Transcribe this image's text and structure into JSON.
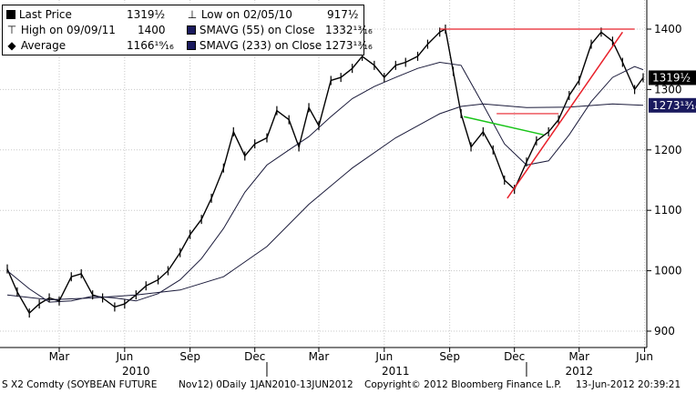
{
  "legend": {
    "rows": [
      {
        "symbol": "■",
        "label": "Last Price",
        "value": "1319½"
      },
      {
        "symbol": "⊤",
        "label": "High on 09/09/11",
        "value": "1400"
      },
      {
        "symbol": "--◆--",
        "label": "Average",
        "value": "1166¹⁹⁄₁₆"
      },
      {
        "symbol": "⊥",
        "label": "Low on 02/05/10",
        "value": "917½"
      },
      {
        "symbol": "■",
        "label": "SMAVG (55) on Close",
        "value": "1332¹³⁄₁₆"
      },
      {
        "symbol": "■",
        "label": "SMAVG (233) on Close",
        "value": "1273¹³⁄₁₆"
      }
    ]
  },
  "footer": {
    "ticker": "S X2 Comdty (SOYBEAN FUTURE",
    "contract": "Nov12) 0Daily 1JAN2010-13JUN2012",
    "copyright": "Copyright© 2012 Bloomberg Finance L.P.",
    "timestamp": "13-Jun-2012 20:39:21"
  },
  "colors": {
    "price": "#000000",
    "resistance_line": "#e8202a",
    "uptrend_line": "#e8202a",
    "green_line": "#18c418",
    "smavg55_swatch": "#1a1a5e",
    "smavg233_swatch": "#1a1a5e",
    "current_label_bg": "#000000",
    "current_label_fg": "#ffffff"
  },
  "chart_data": {
    "type": "line",
    "title": "",
    "xlabel": "",
    "ylabel": "",
    "x_range": [
      "2010-01-01",
      "2012-06-13"
    ],
    "ylim": [
      870,
      1440
    ],
    "yticks": [
      900,
      1000,
      1100,
      1200,
      1300,
      1400
    ],
    "month_ticks": [
      {
        "label": "Mar",
        "date": "2010-03-15"
      },
      {
        "label": "Jun",
        "date": "2010-06-15"
      },
      {
        "label": "Sep",
        "date": "2010-09-15"
      },
      {
        "label": "Dec",
        "date": "2010-12-15"
      },
      {
        "label": "Mar",
        "date": "2011-03-15"
      },
      {
        "label": "Jun",
        "date": "2011-06-15"
      },
      {
        "label": "Sep",
        "date": "2011-09-15"
      },
      {
        "label": "Dec",
        "date": "2011-12-15"
      },
      {
        "label": "Mar",
        "date": "2012-03-15"
      },
      {
        "label": "Jun",
        "date": "2012-06-15"
      }
    ],
    "year_labels": [
      {
        "label": "2010",
        "date": "2010-07-01"
      },
      {
        "label": "2011",
        "date": "2011-07-01"
      },
      {
        "label": "2012",
        "date": "2012-03-15"
      }
    ],
    "year_separators": [
      "2011-01-01",
      "2012-01-01"
    ],
    "grid": true,
    "price_label": "1319½",
    "series": [
      {
        "name": "Last Price",
        "x": [
          "2010-01-01",
          "2010-01-15",
          "2010-02-01",
          "2010-02-15",
          "2010-03-01",
          "2010-03-15",
          "2010-04-01",
          "2010-04-15",
          "2010-05-01",
          "2010-05-15",
          "2010-06-01",
          "2010-06-15",
          "2010-07-01",
          "2010-07-15",
          "2010-08-01",
          "2010-08-15",
          "2010-09-01",
          "2010-09-15",
          "2010-10-01",
          "2010-10-15",
          "2010-11-01",
          "2010-11-15",
          "2010-12-01",
          "2010-12-15",
          "2011-01-01",
          "2011-01-15",
          "2011-02-01",
          "2011-02-15",
          "2011-03-01",
          "2011-03-15",
          "2011-04-01",
          "2011-04-15",
          "2011-05-01",
          "2011-05-15",
          "2011-06-01",
          "2011-06-15",
          "2011-07-01",
          "2011-07-15",
          "2011-08-01",
          "2011-08-15",
          "2011-09-01",
          "2011-09-09",
          "2011-09-20",
          "2011-10-01",
          "2011-10-15",
          "2011-11-01",
          "2011-11-15",
          "2011-12-01",
          "2011-12-15",
          "2012-01-01",
          "2012-01-15",
          "2012-02-01",
          "2012-02-15",
          "2012-03-01",
          "2012-03-15",
          "2012-04-01",
          "2012-04-15",
          "2012-05-01",
          "2012-05-15",
          "2012-06-01",
          "2012-06-13"
        ],
        "values": [
          1003,
          965,
          930,
          945,
          955,
          950,
          990,
          995,
          960,
          955,
          940,
          945,
          960,
          975,
          985,
          1000,
          1030,
          1060,
          1085,
          1120,
          1170,
          1230,
          1190,
          1210,
          1220,
          1265,
          1250,
          1205,
          1270,
          1240,
          1315,
          1320,
          1335,
          1355,
          1340,
          1320,
          1340,
          1345,
          1355,
          1375,
          1395,
          1400,
          1330,
          1260,
          1205,
          1230,
          1200,
          1150,
          1135,
          1180,
          1215,
          1230,
          1250,
          1290,
          1315,
          1375,
          1395,
          1380,
          1345,
          1300,
          1319.5
        ]
      },
      {
        "name": "SMAVG (55) on Close",
        "x": [
          "2010-01-01",
          "2010-02-01",
          "2010-03-01",
          "2010-04-01",
          "2010-05-01",
          "2010-06-01",
          "2010-07-01",
          "2010-08-01",
          "2010-09-01",
          "2010-10-01",
          "2010-11-01",
          "2010-12-01",
          "2011-01-01",
          "2011-02-01",
          "2011-03-01",
          "2011-04-01",
          "2011-05-01",
          "2011-06-01",
          "2011-07-01",
          "2011-08-01",
          "2011-09-01",
          "2011-10-01",
          "2011-11-01",
          "2011-12-01",
          "2012-01-01",
          "2012-02-01",
          "2012-03-01",
          "2012-04-01",
          "2012-05-01",
          "2012-06-01",
          "2012-06-13"
        ],
        "values": [
          1000,
          970,
          948,
          950,
          958,
          955,
          950,
          962,
          985,
          1020,
          1070,
          1130,
          1175,
          1200,
          1222,
          1255,
          1285,
          1305,
          1320,
          1335,
          1345,
          1340,
          1275,
          1210,
          1175,
          1182,
          1225,
          1280,
          1320,
          1338,
          1332.8
        ]
      },
      {
        "name": "SMAVG (233) on Close",
        "x": [
          "2010-01-01",
          "2010-03-01",
          "2010-05-01",
          "2010-07-01",
          "2010-09-01",
          "2010-11-01",
          "2011-01-01",
          "2011-03-01",
          "2011-05-01",
          "2011-07-01",
          "2011-09-01",
          "2011-10-01",
          "2011-11-01",
          "2012-01-01",
          "2012-03-01",
          "2012-05-01",
          "2012-06-13"
        ],
        "values": [
          960,
          952,
          955,
          960,
          968,
          990,
          1040,
          1110,
          1170,
          1220,
          1260,
          1272,
          1276,
          1270,
          1271,
          1276,
          1273.8
        ]
      }
    ],
    "annotations": [
      {
        "type": "hline",
        "name": "resistance",
        "y": 1400,
        "x0": "2011-09-01",
        "x1": "2012-06-01"
      },
      {
        "type": "hline",
        "name": "breakout level",
        "y": 1260,
        "x0": "2011-11-20",
        "x1": "2012-02-15"
      },
      {
        "type": "line",
        "name": "uptrend",
        "x0": "2011-12-05",
        "y0": 1120,
        "x1": "2012-05-15",
        "y1": 1395
      },
      {
        "type": "line",
        "name": "downtrend",
        "x0": "2011-10-05",
        "y0": 1255,
        "x1": "2012-01-25",
        "y1": 1225
      }
    ]
  }
}
